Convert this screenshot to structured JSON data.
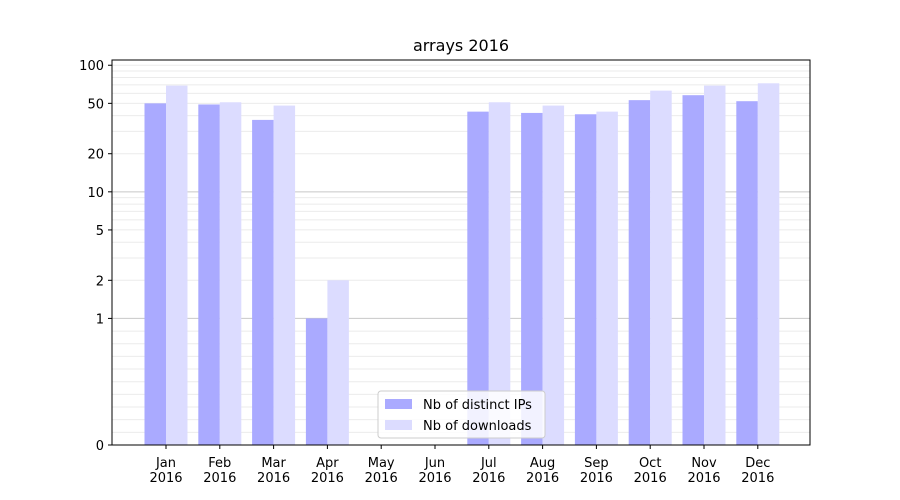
{
  "chart_data": {
    "type": "bar",
    "title": "arrays 2016",
    "xlabel": "",
    "ylabel": "",
    "yscale": "symlog",
    "ylim": [
      0,
      110
    ],
    "yticks": [
      0,
      1,
      2,
      5,
      10,
      20,
      50,
      100
    ],
    "ytick_labels": [
      "0",
      "1",
      "2",
      "5",
      "10",
      "20",
      "50",
      "100"
    ],
    "grid": true,
    "legend_position": "lower-center",
    "categories": [
      {
        "month": "Jan",
        "year": "2016"
      },
      {
        "month": "Feb",
        "year": "2016"
      },
      {
        "month": "Mar",
        "year": "2016"
      },
      {
        "month": "Apr",
        "year": "2016"
      },
      {
        "month": "May",
        "year": "2016"
      },
      {
        "month": "Jun",
        "year": "2016"
      },
      {
        "month": "Jul",
        "year": "2016"
      },
      {
        "month": "Aug",
        "year": "2016"
      },
      {
        "month": "Sep",
        "year": "2016"
      },
      {
        "month": "Oct",
        "year": "2016"
      },
      {
        "month": "Nov",
        "year": "2016"
      },
      {
        "month": "Dec",
        "year": "2016"
      }
    ],
    "series": [
      {
        "name": "Nb of distinct IPs",
        "color": "#aaaaff",
        "values": [
          50,
          49,
          37,
          1,
          0,
          0,
          43,
          42,
          41,
          53,
          58,
          52
        ]
      },
      {
        "name": "Nb of downloads",
        "color": "#dcdcff",
        "values": [
          69,
          51,
          48,
          2,
          0,
          0,
          51,
          48,
          43,
          63,
          69,
          72
        ]
      }
    ]
  }
}
